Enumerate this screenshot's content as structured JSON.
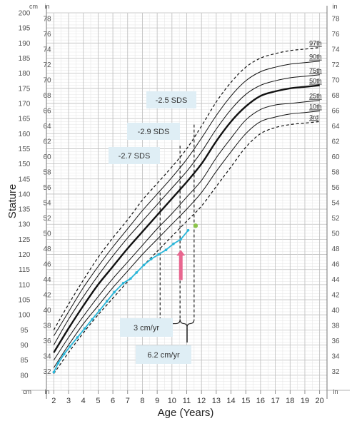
{
  "chart_data": {
    "type": "line",
    "xlabel": "Age (Years)",
    "ylabel": "Stature",
    "x_unit": "",
    "y_unit_left_top": "cm",
    "y_unit_left_bottom": "cm",
    "y_unit_right": "in",
    "xlim": [
      1.5,
      20.5
    ],
    "ylim_cm": [
      75,
      200
    ],
    "x_ticks": [
      2,
      3,
      4,
      5,
      6,
      7,
      8,
      9,
      10,
      11,
      12,
      13,
      14,
      15,
      16,
      17,
      18,
      19,
      20
    ],
    "cm_ticks": [
      80,
      85,
      90,
      95,
      100,
      105,
      110,
      115,
      120,
      125,
      130,
      135,
      140,
      145,
      150,
      155,
      160,
      165,
      170,
      175,
      180,
      185,
      190,
      195,
      200
    ],
    "in_ticks": [
      32,
      34,
      36,
      38,
      40,
      42,
      44,
      46,
      48,
      50,
      52,
      54,
      56,
      58,
      60,
      62,
      64,
      66,
      68,
      70,
      72,
      74,
      76,
      78
    ],
    "percentiles": [
      {
        "name": "97th",
        "style": "dashed",
        "width": 1.2,
        "x": [
          2,
          3,
          4,
          5,
          6,
          7,
          8,
          9,
          10,
          11,
          12,
          13,
          14,
          15,
          16,
          17,
          18,
          19,
          20
        ],
        "y": [
          95,
          103.5,
          111.5,
          119,
          125.5,
          131.5,
          138,
          143.5,
          149,
          155,
          162.5,
          170.5,
          177,
          182,
          185,
          186.5,
          187.5,
          188,
          188.5
        ]
      },
      {
        "name": "90th",
        "style": "solid",
        "width": 1,
        "x": [
          2,
          3,
          4,
          5,
          6,
          7,
          8,
          9,
          10,
          11,
          12,
          13,
          14,
          15,
          16,
          17,
          18,
          19,
          20
        ],
        "y": [
          93,
          101,
          109,
          116,
          122.5,
          128.5,
          134.5,
          140,
          145.5,
          151.5,
          158.5,
          166,
          172.5,
          177.5,
          180.5,
          182,
          183,
          183.5,
          184
        ]
      },
      {
        "name": "75th",
        "style": "solid",
        "width": 1,
        "x": [
          2,
          3,
          4,
          5,
          6,
          7,
          8,
          9,
          10,
          11,
          12,
          13,
          14,
          15,
          16,
          17,
          18,
          19,
          20
        ],
        "y": [
          90,
          98.5,
          106,
          113,
          119.5,
          125.5,
          131,
          136.5,
          142,
          147.5,
          154,
          161.5,
          168,
          173,
          176,
          177.5,
          178.5,
          179,
          179.5
        ]
      },
      {
        "name": "50th",
        "style": "solid",
        "width": 2.4,
        "x": [
          2,
          3,
          4,
          5,
          6,
          7,
          8,
          9,
          10,
          11,
          12,
          13,
          14,
          15,
          16,
          17,
          18,
          19,
          20
        ],
        "y": [
          87.5,
          95.5,
          103,
          110,
          116,
          122,
          127.5,
          133,
          138.5,
          144,
          150,
          157.5,
          164,
          169,
          172.5,
          174,
          175,
          175.5,
          176
        ]
      },
      {
        "name": "25th",
        "style": "solid",
        "width": 1,
        "x": [
          2,
          3,
          4,
          5,
          6,
          7,
          8,
          9,
          10,
          11,
          12,
          13,
          14,
          15,
          16,
          17,
          18,
          19,
          20
        ],
        "y": [
          85,
          92.5,
          99.5,
          106,
          112,
          117.5,
          123,
          128.5,
          133.5,
          139,
          144.5,
          152,
          158.5,
          164.5,
          168,
          169.5,
          170,
          170.5,
          171
        ]
      },
      {
        "name": "10th",
        "style": "solid",
        "width": 1,
        "x": [
          2,
          3,
          4,
          5,
          6,
          7,
          8,
          9,
          10,
          11,
          12,
          13,
          14,
          15,
          16,
          17,
          18,
          19,
          20
        ],
        "y": [
          82.5,
          90,
          97,
          103,
          109,
          114.5,
          120,
          125,
          130,
          135,
          140.5,
          147.5,
          154,
          160,
          164,
          165.5,
          166.5,
          167,
          167.5
        ]
      },
      {
        "name": "3rd",
        "style": "dashed",
        "width": 1.2,
        "x": [
          2,
          3,
          4,
          5,
          6,
          7,
          8,
          9,
          10,
          11,
          12,
          13,
          14,
          15,
          16,
          17,
          18,
          19,
          20
        ],
        "y": [
          80.5,
          87.5,
          94,
          100,
          105.5,
          111,
          116,
          121,
          126,
          131,
          136,
          142.5,
          149,
          155.5,
          160,
          162,
          163,
          163.5,
          164
        ]
      }
    ],
    "patient": {
      "name": "",
      "color": "#29b6d9",
      "x": [
        2,
        2.3,
        2.7,
        3.1,
        3.6,
        4.1,
        4.6,
        5.1,
        5.6,
        6.1,
        6.7,
        7.2,
        7.6,
        8.1,
        8.6,
        9.1,
        9.6,
        10.1,
        10.6,
        11.1
      ],
      "y": [
        81,
        84,
        87,
        89.5,
        92.5,
        95.5,
        98.5,
        101.5,
        104.5,
        107.5,
        110.5,
        112,
        114,
        116.5,
        118.5,
        120,
        121.5,
        123.5,
        125,
        128
      ]
    },
    "green_point": {
      "x": 11.6,
      "y": 129.5,
      "color": "#8bc34a"
    },
    "arrow": {
      "x": 10.6,
      "y_from": 111.5,
      "y_to": 121.5,
      "color": "#e8668f"
    },
    "sds_boxes": [
      {
        "label": "-2.5 SDS",
        "line_x": 11.5
      },
      {
        "label": "-2.9 SDS",
        "line_x": 10.55
      },
      {
        "label": "-2.7 SDS",
        "line_x": 9.2
      }
    ],
    "velocity_boxes": [
      {
        "label": "3 cm/yr"
      },
      {
        "label": "6.2 cm/yr"
      }
    ]
  }
}
